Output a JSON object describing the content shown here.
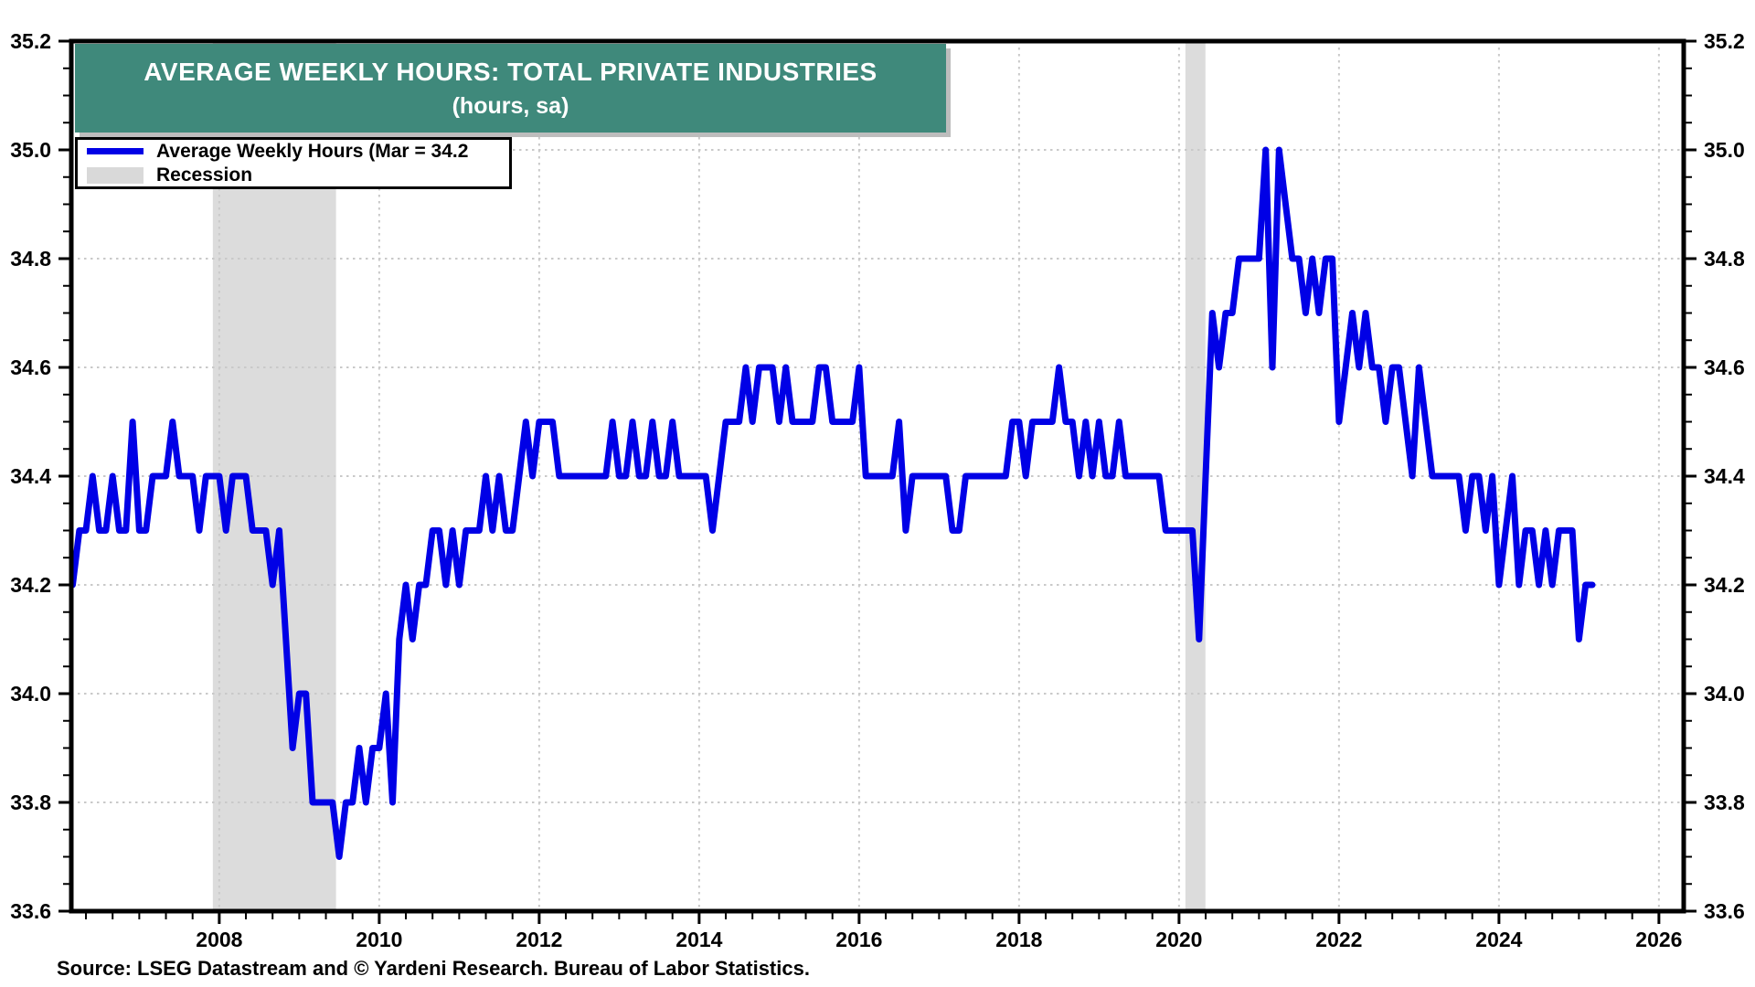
{
  "page": {
    "background": "#ffffff"
  },
  "title_box": {
    "line1": "AVERAGE WEEKLY HOURS: TOTAL PRIVATE INDUSTRIES",
    "line2": "(hours, sa)",
    "bg_color": "#3F897B",
    "text_color": "#ffffff"
  },
  "legend": {
    "items": [
      {
        "swatch": "line",
        "color": "#0000E6",
        "label": "Average Weekly Hours (Mar = 34.2"
      },
      {
        "swatch": "box",
        "color": "#D9D9D9",
        "label": "Recession"
      }
    ]
  },
  "source_note": "Source: LSEG Datastream and © Yardeni Research. Bureau of Labor Statistics.",
  "chart_data": {
    "type": "line",
    "title": "AVERAGE WEEKLY HOURS: TOTAL PRIVATE INDUSTRIES",
    "subtitle": "(hours, sa)",
    "ylabel": "hours",
    "line_color": "#0000E6",
    "line_width": 7,
    "band_color": "#DCDCDC",
    "grid_color": "#C9C9C9",
    "frame_color": "#000000",
    "x_axis": {
      "min": 2006.15,
      "max": 2026.31,
      "labels": [
        "2008",
        "2010",
        "2012",
        "2014",
        "2016",
        "2018",
        "2020",
        "2022",
        "2024",
        "2026"
      ],
      "minor_step_years": 0.33333
    },
    "y_axis": {
      "min": 33.6,
      "max": 35.2,
      "major_step": 0.2,
      "minor_step": 0.05,
      "labels": [
        "33.6",
        "33.8",
        "34.0",
        "34.2",
        "34.4",
        "34.6",
        "34.8",
        "35.0",
        "35.2"
      ]
    },
    "recession_bands": [
      {
        "from": 2007.92,
        "to": 2009.46,
        "label": "2008-09 recession"
      },
      {
        "from": 2020.08,
        "to": 2020.33,
        "label": "2020 recession"
      }
    ],
    "series": [
      {
        "name": "Average Weekly Hours",
        "frequency": "monthly",
        "start": "2006-03",
        "end": "2025-03",
        "start_decimal_year": 2006.1667,
        "latest_label": "Mar = 34.2",
        "values": [
          34.2,
          34.3,
          34.3,
          34.4,
          34.3,
          34.3,
          34.4,
          34.3,
          34.3,
          34.5,
          34.3,
          34.3,
          34.4,
          34.4,
          34.4,
          34.5,
          34.4,
          34.4,
          34.4,
          34.3,
          34.4,
          34.4,
          34.4,
          34.3,
          34.4,
          34.4,
          34.4,
          34.3,
          34.3,
          34.3,
          34.2,
          34.3,
          34.1,
          33.9,
          34.0,
          34.0,
          33.8,
          33.8,
          33.8,
          33.8,
          33.7,
          33.8,
          33.8,
          33.9,
          33.8,
          33.9,
          33.9,
          34.0,
          33.8,
          34.1,
          34.2,
          34.1,
          34.2,
          34.2,
          34.3,
          34.3,
          34.2,
          34.3,
          34.2,
          34.3,
          34.3,
          34.3,
          34.4,
          34.3,
          34.4,
          34.3,
          34.3,
          34.4,
          34.5,
          34.4,
          34.5,
          34.5,
          34.5,
          34.4,
          34.4,
          34.4,
          34.4,
          34.4,
          34.4,
          34.4,
          34.4,
          34.5,
          34.4,
          34.4,
          34.5,
          34.4,
          34.4,
          34.5,
          34.4,
          34.4,
          34.5,
          34.4,
          34.4,
          34.4,
          34.4,
          34.4,
          34.3,
          34.4,
          34.5,
          34.5,
          34.5,
          34.6,
          34.5,
          34.6,
          34.6,
          34.6,
          34.5,
          34.6,
          34.5,
          34.5,
          34.5,
          34.5,
          34.6,
          34.6,
          34.5,
          34.5,
          34.5,
          34.5,
          34.6,
          34.4,
          34.4,
          34.4,
          34.4,
          34.4,
          34.5,
          34.3,
          34.4,
          34.4,
          34.4,
          34.4,
          34.4,
          34.4,
          34.3,
          34.3,
          34.4,
          34.4,
          34.4,
          34.4,
          34.4,
          34.4,
          34.4,
          34.5,
          34.5,
          34.4,
          34.5,
          34.5,
          34.5,
          34.5,
          34.6,
          34.5,
          34.5,
          34.4,
          34.5,
          34.4,
          34.5,
          34.4,
          34.4,
          34.5,
          34.4,
          34.4,
          34.4,
          34.4,
          34.4,
          34.4,
          34.3,
          34.3,
          34.3,
          34.3,
          34.3,
          34.1,
          34.4,
          34.7,
          34.6,
          34.7,
          34.7,
          34.8,
          34.8,
          34.8,
          34.8,
          35.0,
          34.6,
          35.0,
          34.9,
          34.8,
          34.8,
          34.7,
          34.8,
          34.7,
          34.8,
          34.8,
          34.5,
          34.6,
          34.7,
          34.6,
          34.7,
          34.6,
          34.6,
          34.5,
          34.6,
          34.6,
          34.5,
          34.4,
          34.6,
          34.5,
          34.4,
          34.4,
          34.4,
          34.4,
          34.4,
          34.3,
          34.4,
          34.4,
          34.3,
          34.4,
          34.2,
          34.3,
          34.4,
          34.2,
          34.3,
          34.3,
          34.2,
          34.3,
          34.2,
          34.3,
          34.3,
          34.3,
          34.1,
          34.2,
          34.2
        ]
      }
    ]
  }
}
